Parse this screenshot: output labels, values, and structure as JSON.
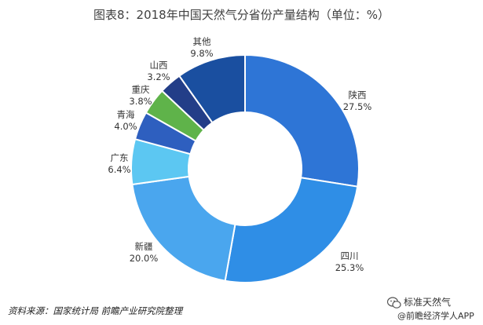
{
  "chart_data": {
    "type": "pie",
    "title": "图表8：2018年中国天然气分省份产量结构（单位：%）",
    "categories": [
      "陕西",
      "四川",
      "新疆",
      "广东",
      "青海",
      "重庆",
      "山西",
      "其他"
    ],
    "values": [
      27.5,
      25.3,
      20.0,
      6.4,
      4.0,
      3.8,
      3.2,
      9.8
    ],
    "value_labels": [
      "27.5%",
      "25.3%",
      "20.0%",
      "6.4%",
      "4.0%",
      "3.8%",
      "3.2%",
      "9.8%"
    ],
    "colors": [
      "#2E75D6",
      "#2F8EE6",
      "#4AA6EE",
      "#5CC7F2",
      "#2E5FBF",
      "#5FB34A",
      "#233E88",
      "#1A4FA0"
    ],
    "donut": true,
    "legend": "none"
  },
  "footer": {
    "source": "资料来源：国家统计局 前瞻产业研究院整理",
    "brand": "标准天然气",
    "brand_sub": "@前瞻经济学人APP"
  },
  "icons": {
    "brand": "wechat-icon"
  }
}
